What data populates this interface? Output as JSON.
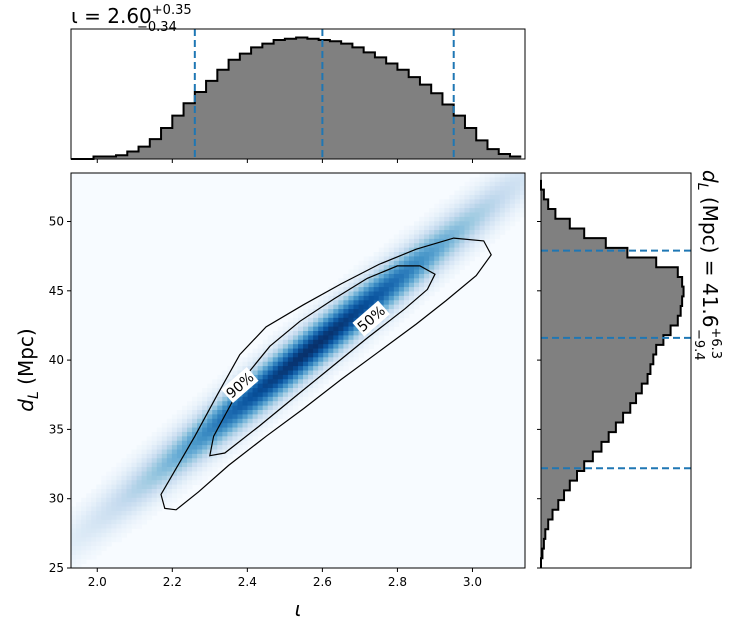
{
  "chart_data": [
    {
      "panel": "top-marginal",
      "type": "histogram",
      "variable": "ι",
      "stat": {
        "prefix": "ι = ",
        "median": "2.60",
        "plus": "+0.35",
        "minus": "−0.34"
      },
      "quantile_lines": [
        2.26,
        2.6,
        2.95
      ],
      "xlim": [
        1.93,
        3.14
      ],
      "bin_edges": [
        1.93,
        1.96,
        1.99,
        2.02,
        2.05,
        2.08,
        2.11,
        2.14,
        2.17,
        2.2,
        2.23,
        2.26,
        2.29,
        2.32,
        2.35,
        2.38,
        2.41,
        2.44,
        2.47,
        2.5,
        2.53,
        2.56,
        2.59,
        2.62,
        2.65,
        2.68,
        2.71,
        2.74,
        2.77,
        2.8,
        2.83,
        2.86,
        2.89,
        2.92,
        2.95,
        2.98,
        3.01,
        3.04,
        3.07,
        3.1,
        3.13
      ],
      "counts": [
        0.0,
        0.0,
        0.02,
        0.02,
        0.03,
        0.06,
        0.1,
        0.16,
        0.25,
        0.35,
        0.45,
        0.54,
        0.63,
        0.72,
        0.8,
        0.85,
        0.9,
        0.93,
        0.96,
        0.97,
        0.98,
        0.97,
        0.96,
        0.95,
        0.93,
        0.9,
        0.86,
        0.82,
        0.77,
        0.72,
        0.66,
        0.6,
        0.53,
        0.44,
        0.35,
        0.25,
        0.15,
        0.08,
        0.04,
        0.02
      ],
      "color": "#808080",
      "line_color": "#1f77b4"
    },
    {
      "panel": "right-marginal",
      "type": "histogram",
      "orientation": "horizontal",
      "variable": "d_L (Mpc)",
      "stat": {
        "prefix": "d",
        "sub": "L",
        "unit": " (Mpc) = ",
        "median": "41.6",
        "plus": "+6.3",
        "minus": "−9.4"
      },
      "quantile_lines": [
        32.2,
        41.6,
        47.9
      ],
      "ylim": [
        25,
        53.5
      ],
      "bin_edges": [
        25.0,
        25.7,
        26.4,
        27.1,
        27.8,
        28.5,
        29.2,
        29.9,
        30.6,
        31.3,
        32.0,
        32.7,
        33.4,
        34.1,
        34.8,
        35.5,
        36.2,
        36.9,
        37.6,
        38.3,
        39.0,
        39.7,
        40.4,
        41.1,
        41.8,
        42.5,
        43.2,
        43.9,
        44.6,
        45.3,
        46.0,
        46.7,
        47.4,
        48.1,
        48.8,
        49.5,
        50.2,
        50.9,
        51.6,
        52.3,
        53.0
      ],
      "counts": [
        0.0,
        0.01,
        0.02,
        0.03,
        0.05,
        0.08,
        0.12,
        0.16,
        0.2,
        0.25,
        0.3,
        0.36,
        0.42,
        0.47,
        0.52,
        0.57,
        0.62,
        0.66,
        0.7,
        0.74,
        0.76,
        0.78,
        0.8,
        0.85,
        0.9,
        0.95,
        0.97,
        0.98,
        0.99,
        0.98,
        0.95,
        0.8,
        0.6,
        0.45,
        0.3,
        0.2,
        0.1,
        0.05,
        0.02,
        0.0
      ],
      "color": "#808080",
      "line_color": "#1f77b4"
    },
    {
      "panel": "joint",
      "type": "heatmap",
      "xlabel": "ι",
      "ylabel_main": "d",
      "ylabel_sub": "L",
      "ylabel_unit": " (Mpc)",
      "xlim": [
        1.93,
        3.14
      ],
      "ylim": [
        25,
        53.5
      ],
      "xticks": [
        2.0,
        2.2,
        2.4,
        2.6,
        2.8,
        3.0
      ],
      "xtick_labels": [
        "2.0",
        "2.2",
        "2.4",
        "2.6",
        "2.8",
        "3.0"
      ],
      "yticks": [
        25,
        30,
        35,
        40,
        45,
        50
      ],
      "ytick_labels": [
        "25",
        "30",
        "35",
        "40",
        "45",
        "50"
      ],
      "colormap": "Blues",
      "density_model": {
        "center": [
          2.57,
          40.8
        ],
        "ridge_endpoints": [
          [
            2.2,
            30.5
          ],
          [
            2.93,
            46.5
          ]
        ],
        "along_sigma_frac": 0.42,
        "perp_sigma": 0.9
      },
      "contours": [
        {
          "label": "90%",
          "label_pos": [
            2.38,
            38.2
          ],
          "points": [
            [
              2.18,
              29.3
            ],
            [
              2.21,
              29.2
            ],
            [
              2.27,
              30.5
            ],
            [
              2.35,
              32.4
            ],
            [
              2.45,
              34.5
            ],
            [
              2.55,
              36.5
            ],
            [
              2.65,
              38.6
            ],
            [
              2.75,
              40.6
            ],
            [
              2.85,
              42.6
            ],
            [
              2.93,
              44.3
            ],
            [
              3.01,
              46.1
            ],
            [
              3.05,
              47.6
            ],
            [
              3.03,
              48.6
            ],
            [
              2.95,
              48.8
            ],
            [
              2.85,
              48.0
            ],
            [
              2.75,
              46.9
            ],
            [
              2.65,
              45.5
            ],
            [
              2.55,
              44.0
            ],
            [
              2.45,
              42.4
            ],
            [
              2.38,
              40.4
            ],
            [
              2.32,
              37.5
            ],
            [
              2.26,
              34.5
            ],
            [
              2.2,
              31.7
            ],
            [
              2.17,
              30.3
            ]
          ]
        },
        {
          "label": "50%",
          "label_pos": [
            2.73,
            43.0
          ],
          "points": [
            [
              2.3,
              33.1
            ],
            [
              2.34,
              33.3
            ],
            [
              2.43,
              35.2
            ],
            [
              2.52,
              37.2
            ],
            [
              2.62,
              39.4
            ],
            [
              2.72,
              41.6
            ],
            [
              2.82,
              43.7
            ],
            [
              2.88,
              45.1
            ],
            [
              2.9,
              46.2
            ],
            [
              2.86,
              46.8
            ],
            [
              2.8,
              46.8
            ],
            [
              2.72,
              45.9
            ],
            [
              2.63,
              44.4
            ],
            [
              2.54,
              42.8
            ],
            [
              2.46,
              41.0
            ],
            [
              2.4,
              39.0
            ],
            [
              2.35,
              36.5
            ],
            [
              2.31,
              34.5
            ]
          ]
        }
      ]
    }
  ]
}
